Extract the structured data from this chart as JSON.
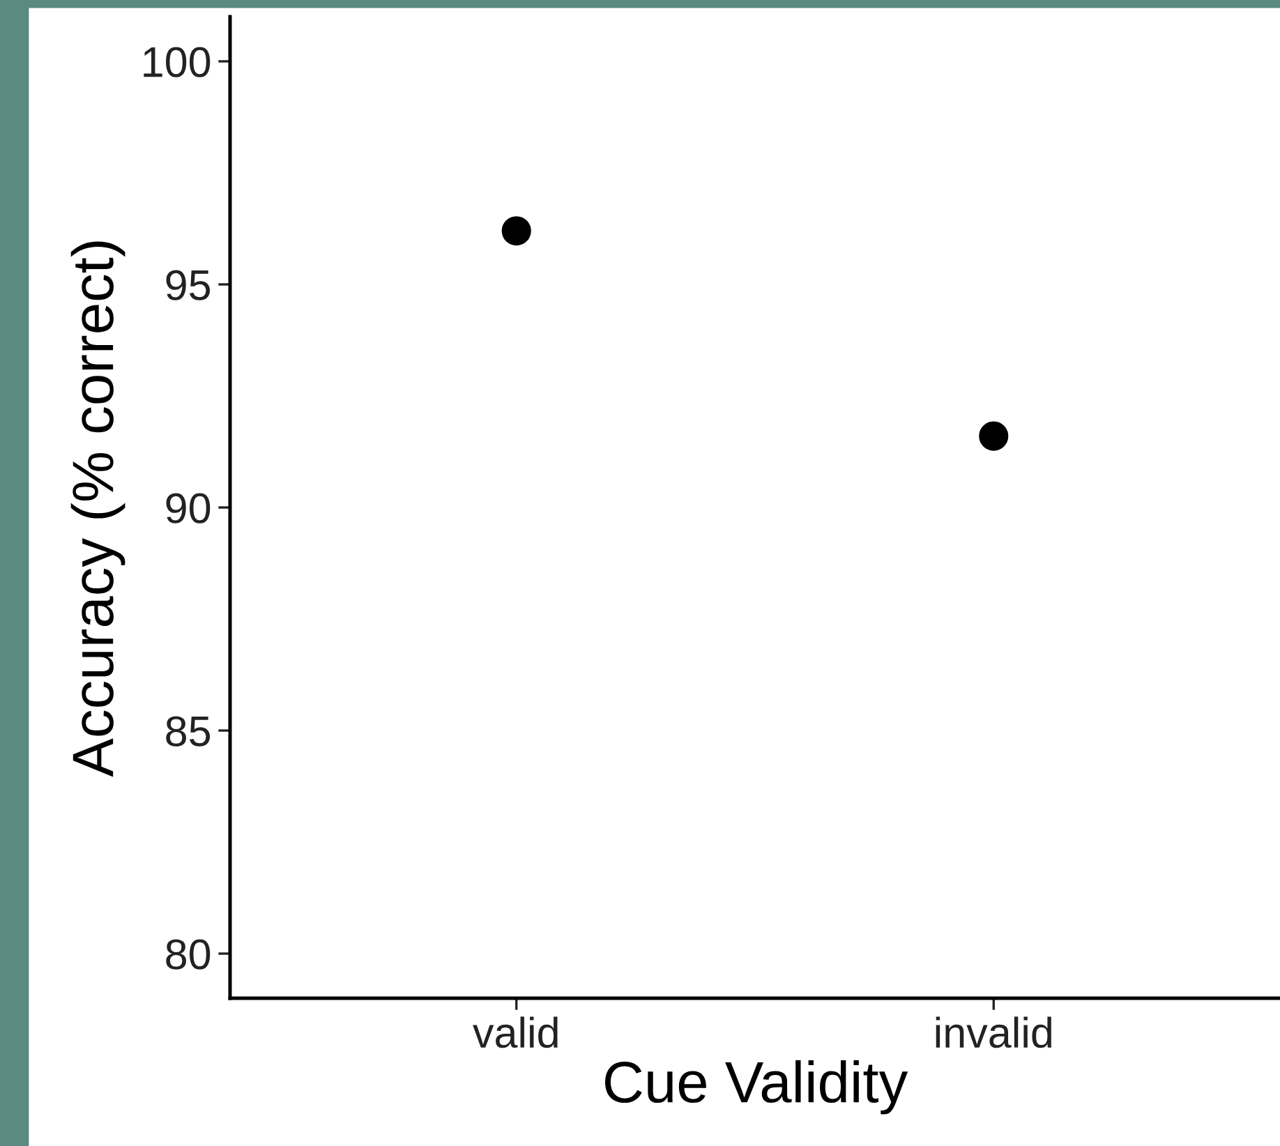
{
  "chart_data": {
    "type": "scatter",
    "xlabel": "Cue Validity",
    "ylabel": "Accuracy (% correct)",
    "categories": [
      "valid",
      "invalid"
    ],
    "series": [
      {
        "color": "#000000",
        "values": [
          96.2,
          91.6
        ]
      }
    ],
    "ylim": [
      79,
      101
    ],
    "yticks": [
      80,
      85,
      90,
      95,
      100
    ],
    "grid": false,
    "marker": "circle"
  }
}
